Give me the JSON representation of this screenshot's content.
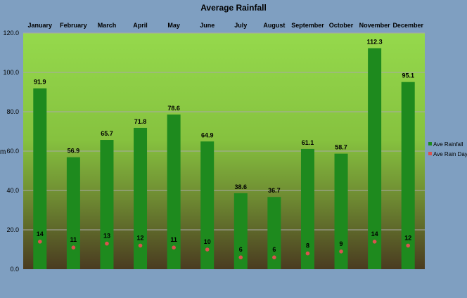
{
  "chart_data": {
    "type": "bar",
    "title": "Average Rainfall",
    "ylabel": "m",
    "xlabel": "",
    "ylim": [
      0,
      120
    ],
    "yticks": [
      "0.0",
      "20.0",
      "40.0",
      "60.0",
      "80.0",
      "100.0",
      "120.0"
    ],
    "categories": [
      "January",
      "February",
      "March",
      "April",
      "May",
      "June",
      "July",
      "August",
      "September",
      "October",
      "November",
      "December"
    ],
    "x_axis_position": "top",
    "grid": true,
    "legend_position": "right",
    "series": [
      {
        "name": "Ave Rainfall",
        "kind": "bar",
        "color": "#1e8a1e",
        "values": [
          91.9,
          56.9,
          65.7,
          71.8,
          78.6,
          64.9,
          38.6,
          36.7,
          61.1,
          58.7,
          112.3,
          95.1
        ],
        "labels": [
          "91.9",
          "56.9",
          "65.7",
          "71.8",
          "78.6",
          "64.9",
          "38.6",
          "36.7",
          "61.1",
          "58.7",
          "112.3",
          "95.1"
        ]
      },
      {
        "name": "Ave Rain Day",
        "kind": "point",
        "color": "#d9534f",
        "values": [
          14,
          11,
          13,
          12,
          11,
          10,
          6,
          6,
          8,
          9,
          14,
          12
        ],
        "labels": [
          "14",
          "11",
          "13",
          "12",
          "11",
          "10",
          "6",
          "6",
          "8",
          "9",
          "14",
          "12"
        ]
      }
    ],
    "colors": {
      "background": "#7f9fc1",
      "plot_top": "#95d94c",
      "plot_bottom": "#4a3b20",
      "gridline": "#a9a9a9"
    }
  }
}
